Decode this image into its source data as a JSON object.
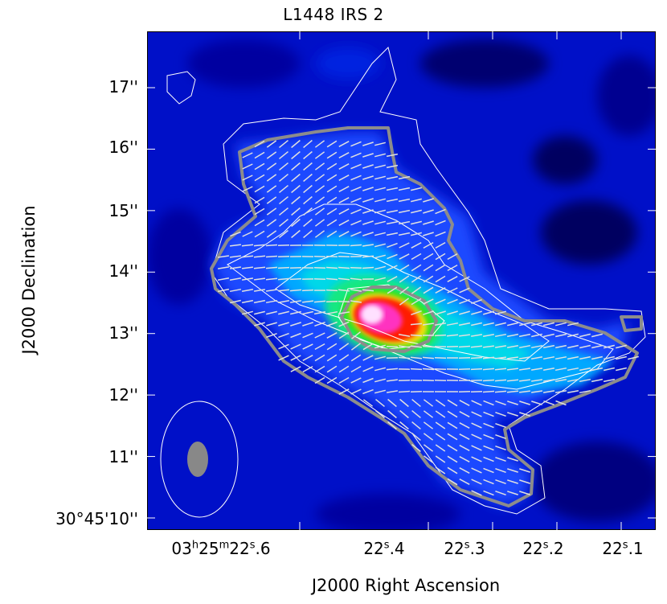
{
  "chart_data": {
    "type": "heatmap",
    "title": "L1448 IRS 2",
    "xlabel": "J2000 Right Ascension",
    "ylabel": "J2000 Declination",
    "x_ticks": [
      {
        "h": "03",
        "m": "25",
        "s": "22",
        "frac": ".6",
        "value": 22.6
      },
      {
        "s": "22",
        "frac": ".4",
        "value": 22.4
      },
      {
        "s": "22",
        "frac": ".3",
        "value": 22.3
      },
      {
        "s": "22",
        "frac": ".2",
        "value": 22.2
      },
      {
        "s": "22",
        "frac": ".1",
        "value": 22.1
      }
    ],
    "y_ticks": [
      {
        "label": "30°45'10''",
        "value": 10
      },
      {
        "label": "11''",
        "value": 11
      },
      {
        "label": "12''",
        "value": 12
      },
      {
        "label": "13''",
        "value": 13
      },
      {
        "label": "14''",
        "value": 14
      },
      {
        "label": "15''",
        "value": 15
      },
      {
        "label": "16''",
        "value": 16
      },
      {
        "label": "17''",
        "value": 17
      }
    ],
    "colormap": [
      "#00008a",
      "#0010d0",
      "#2050ff",
      "#00c8ff",
      "#10e8a8",
      "#20e020",
      "#f0e020",
      "#ff2000",
      "#ff40c0",
      "#ffffff"
    ],
    "peak": {
      "ra": 22.39,
      "dec": 13.2
    },
    "contour_color": "#ffffff",
    "threshold_contour_color": "#8c8c8c",
    "vector_color": "#d8d8d8",
    "beam": {
      "major_arcsec": 2.0,
      "minor_arcsec": 1.0,
      "synth_major_arcsec": 0.4,
      "synth_minor_arcsec": 0.3
    },
    "grid": false
  }
}
